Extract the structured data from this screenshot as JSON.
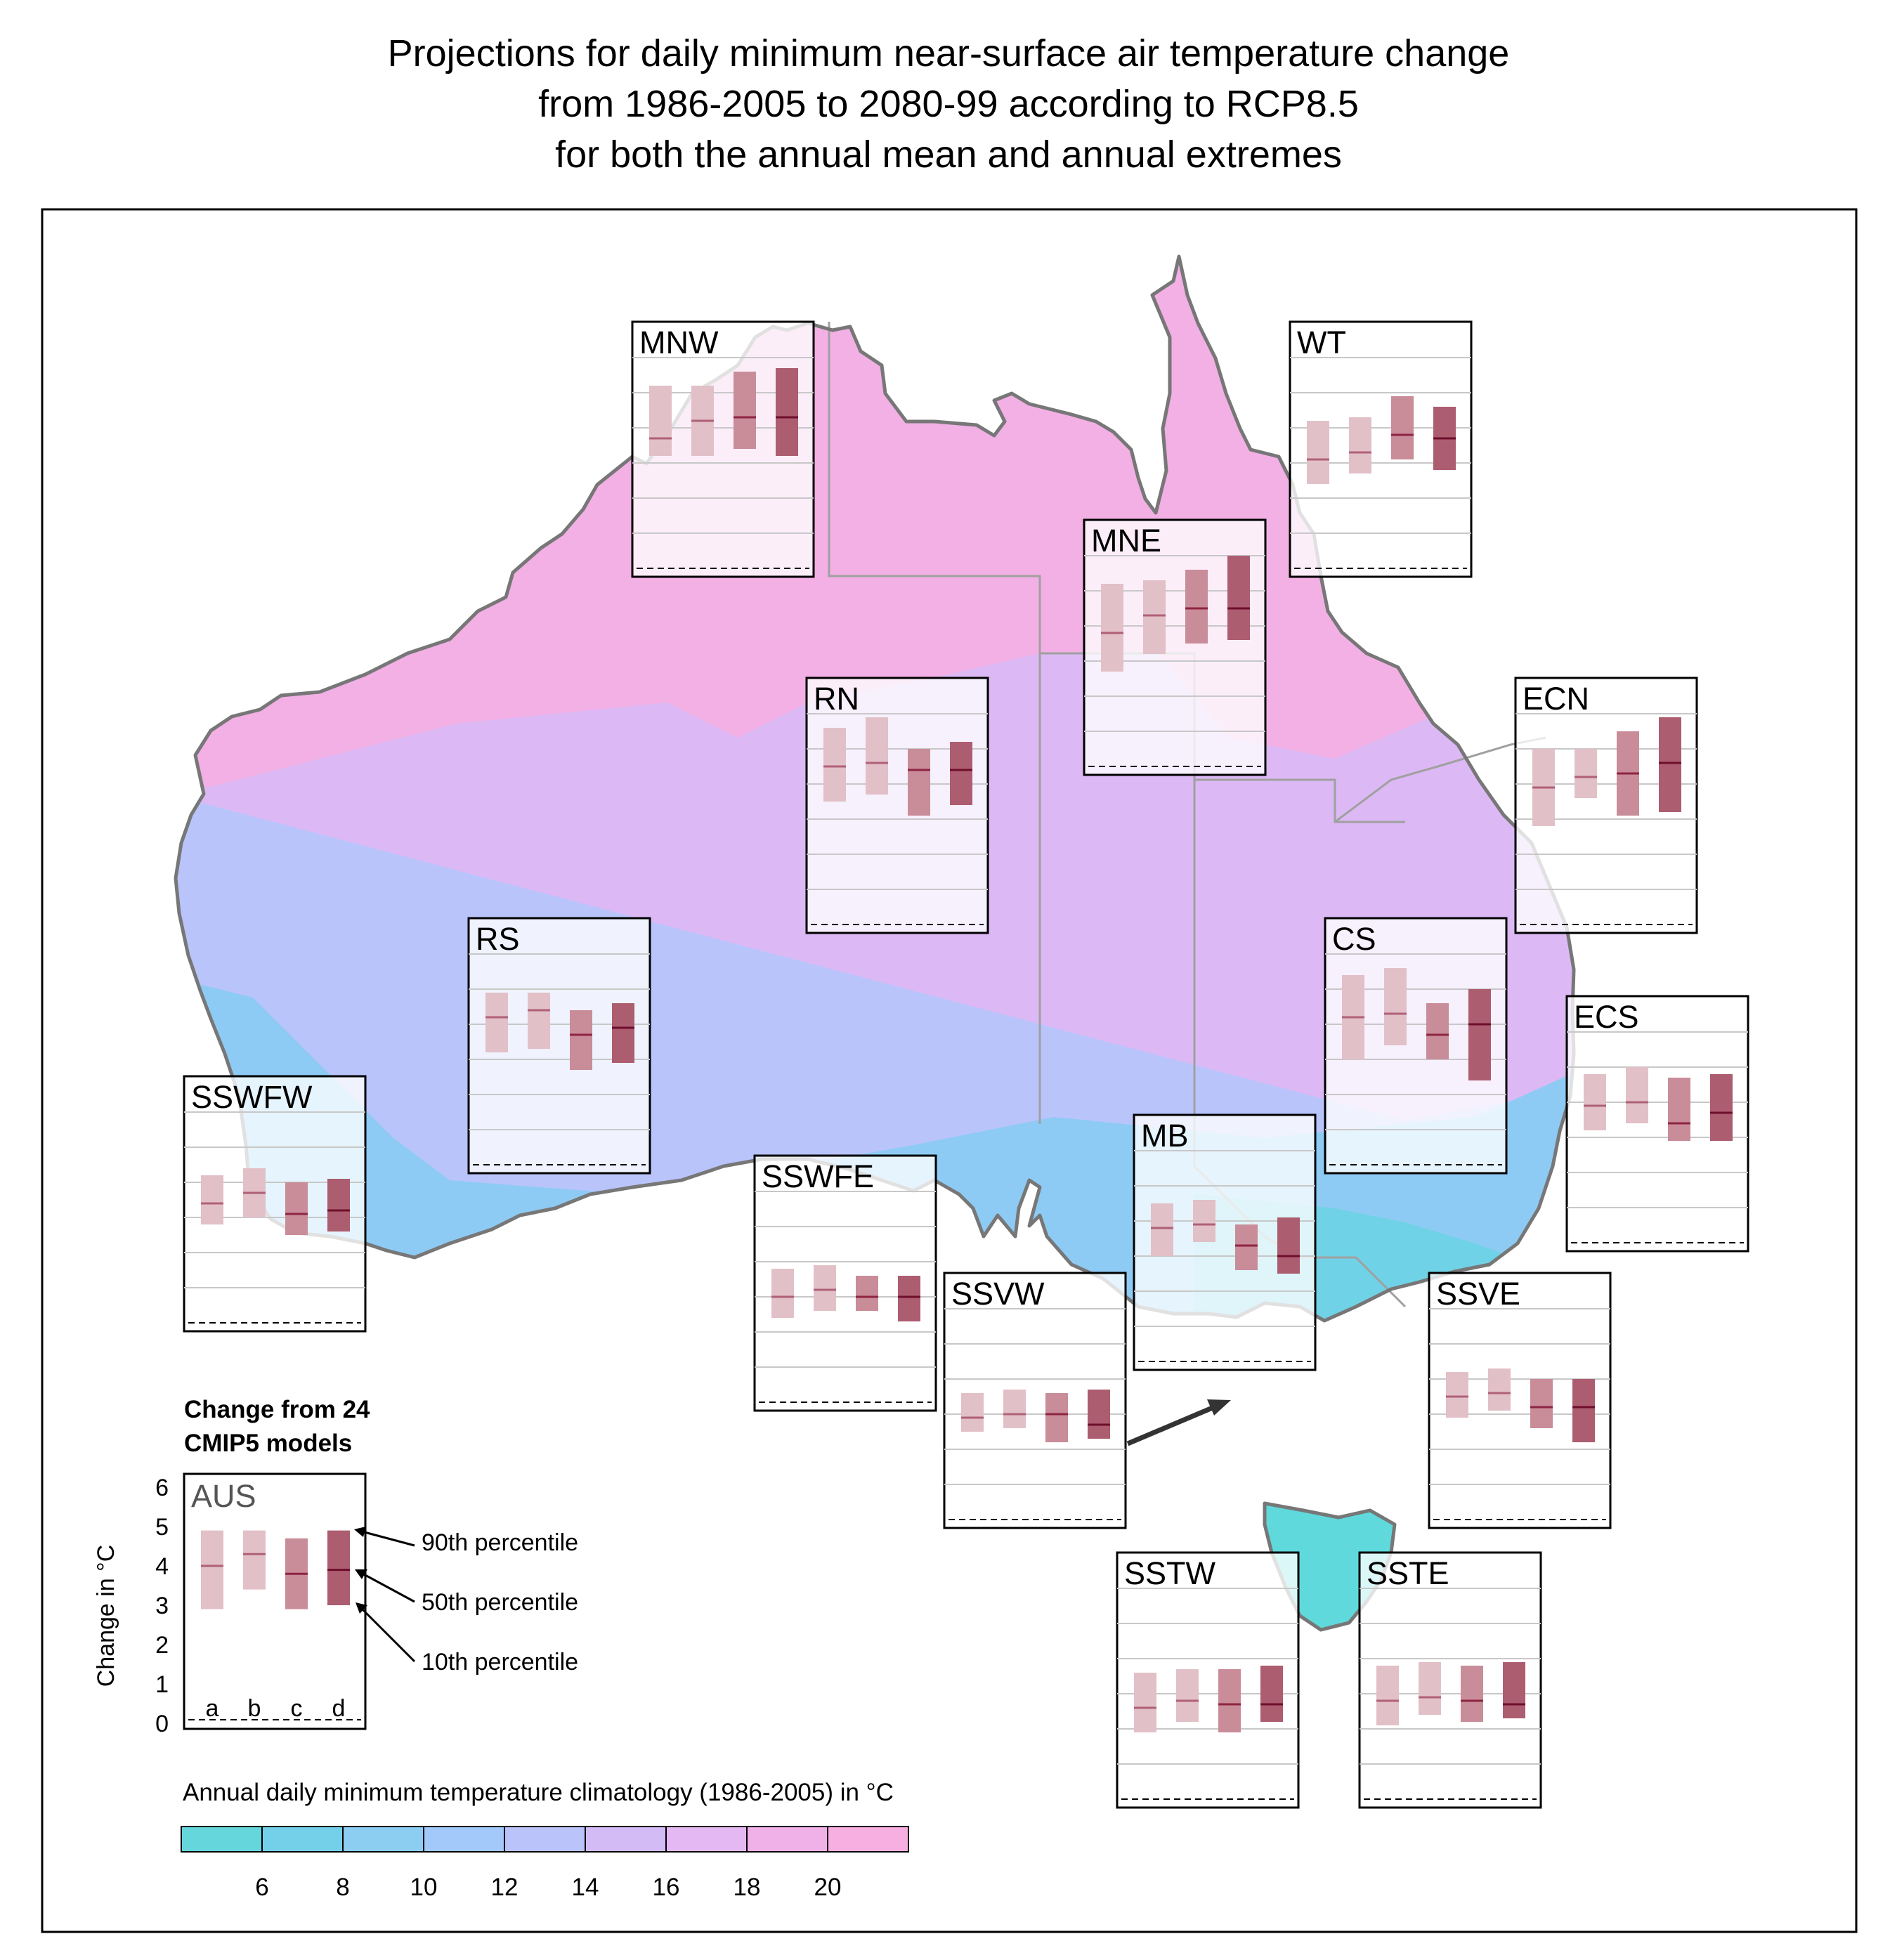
{
  "title": {
    "line1": "Projections for daily minimum near-surface air temperature change",
    "line2": "from 1986-2005 to 2080-99 according to RCP8.5",
    "line3": "for both the annual mean and annual extremes"
  },
  "legend": {
    "heading_line1": "Change from 24",
    "heading_line2": "CMIP5 models",
    "example_region": "AUS",
    "y_axis_label": "Change in  °C",
    "y_ticks": [
      "0",
      "1",
      "2",
      "3",
      "4",
      "5",
      "6"
    ],
    "bar_letters": [
      "a",
      "b",
      "c",
      "d"
    ],
    "p90_label": "90th percentile",
    "p50_label": "50th percentile",
    "p10_label": "10th percentile",
    "example_bars": [
      {
        "p10": 2.9,
        "p50": 4.0,
        "p90": 4.9
      },
      {
        "p10": 3.4,
        "p50": 4.3,
        "p90": 4.9
      },
      {
        "p10": 2.9,
        "p50": 3.8,
        "p90": 4.7
      },
      {
        "p10": 3.0,
        "p50": 3.9,
        "p90": 4.9
      }
    ]
  },
  "colorbar": {
    "label": "Annual daily minimum temperature climatology (1986-2005) in  °C",
    "tick_labels": [
      "6",
      "8",
      "10",
      "12",
      "14",
      "16",
      "18",
      "20"
    ],
    "colors": [
      "#64d6dc",
      "#74d0e8",
      "#8ccdf2",
      "#a3c9fa",
      "#bbc3fb",
      "#d3bcf6",
      "#e4b8f2",
      "#efb1e8",
      "#f7aee0"
    ]
  },
  "map_colors": {
    "north": "#f2b0e5",
    "central": "#dcb9f5",
    "southwest": "#b9c4fb",
    "south": "#8ecbf4",
    "southeast": "#70d2e6",
    "tasmania": "#5fd9dc",
    "border": "#7a7a7a"
  },
  "bar_colors": [
    "#e2c0c7",
    "#e2c0c7",
    "#c98c99",
    "#ad5d70"
  ],
  "median_colors": [
    "#b0607a",
    "#b0607a",
    "#8e2444",
    "#6e0e2c"
  ],
  "chart_data": {
    "type": "bar",
    "description_units": "Change in °C",
    "ylim": [
      0,
      6
    ],
    "categories": [
      "a",
      "b",
      "c",
      "d"
    ],
    "regions": [
      {
        "name": "MNW",
        "bars": [
          [
            3.2,
            3.7,
            5.2
          ],
          [
            3.2,
            4.2,
            5.2
          ],
          [
            3.4,
            4.3,
            5.6
          ],
          [
            3.2,
            4.3,
            5.7
          ]
        ]
      },
      {
        "name": "WT",
        "bars": [
          [
            2.4,
            3.1,
            4.2
          ],
          [
            2.7,
            3.3,
            4.3
          ],
          [
            3.1,
            3.8,
            4.9
          ],
          [
            2.8,
            3.7,
            4.6
          ]
        ]
      },
      {
        "name": "MNE",
        "bars": [
          [
            2.7,
            3.8,
            5.2
          ],
          [
            3.2,
            4.3,
            5.3
          ],
          [
            3.5,
            4.5,
            5.6
          ],
          [
            3.6,
            4.5,
            6.0
          ]
        ]
      },
      {
        "name": "RN",
        "bars": [
          [
            3.5,
            4.5,
            5.6
          ],
          [
            3.7,
            4.6,
            5.9
          ],
          [
            3.1,
            4.4,
            5.0
          ],
          [
            3.4,
            4.4,
            5.2
          ]
        ]
      },
      {
        "name": "ECN",
        "bars": [
          [
            2.8,
            3.9,
            5.0
          ],
          [
            3.6,
            4.2,
            5.0
          ],
          [
            3.1,
            4.3,
            5.5
          ],
          [
            3.2,
            4.6,
            5.9
          ]
        ]
      },
      {
        "name": "RS",
        "bars": [
          [
            3.2,
            4.2,
            4.9
          ],
          [
            3.3,
            4.4,
            4.9
          ],
          [
            2.7,
            3.7,
            4.4
          ],
          [
            2.9,
            3.9,
            4.6
          ]
        ]
      },
      {
        "name": "CS",
        "bars": [
          [
            3.0,
            4.2,
            5.4
          ],
          [
            3.4,
            4.3,
            5.6
          ],
          [
            3.0,
            3.7,
            4.6
          ],
          [
            2.4,
            4.0,
            5.0
          ]
        ]
      },
      {
        "name": "ECS",
        "bars": [
          [
            3.2,
            3.9,
            4.8
          ],
          [
            3.4,
            4.0,
            5.0
          ],
          [
            2.9,
            3.4,
            4.7
          ],
          [
            2.9,
            3.7,
            4.8
          ]
        ]
      },
      {
        "name": "SSWFW",
        "bars": [
          [
            2.8,
            3.4,
            4.2
          ],
          [
            3.0,
            3.7,
            4.4
          ],
          [
            2.5,
            3.1,
            4.0
          ],
          [
            2.6,
            3.2,
            4.1
          ]
        ]
      },
      {
        "name": "SSWFE",
        "bars": [
          [
            2.4,
            3.0,
            3.8
          ],
          [
            2.6,
            3.2,
            3.9
          ],
          [
            2.6,
            3.0,
            3.6
          ],
          [
            2.3,
            3.0,
            3.6
          ]
        ]
      },
      {
        "name": "MB",
        "bars": [
          [
            3.0,
            3.8,
            4.5
          ],
          [
            3.4,
            3.9,
            4.6
          ],
          [
            2.6,
            3.3,
            3.9
          ],
          [
            2.5,
            3.0,
            4.1
          ]
        ]
      },
      {
        "name": "SSVW",
        "bars": [
          [
            2.5,
            2.9,
            3.6
          ],
          [
            2.6,
            3.0,
            3.7
          ],
          [
            2.2,
            3.0,
            3.6
          ],
          [
            2.3,
            2.7,
            3.7
          ]
        ]
      },
      {
        "name": "SSVE",
        "bars": [
          [
            2.9,
            3.5,
            4.2
          ],
          [
            3.1,
            3.6,
            4.3
          ],
          [
            2.6,
            3.2,
            4.0
          ],
          [
            2.2,
            3.2,
            4.0
          ]
        ]
      },
      {
        "name": "SSTW",
        "bars": [
          [
            1.9,
            2.6,
            3.6
          ],
          [
            2.2,
            2.8,
            3.7
          ],
          [
            1.9,
            2.7,
            3.7
          ],
          [
            2.2,
            2.7,
            3.8
          ]
        ]
      },
      {
        "name": "SSTE",
        "bars": [
          [
            2.1,
            2.8,
            3.8
          ],
          [
            2.4,
            2.9,
            3.9
          ],
          [
            2.2,
            2.8,
            3.8
          ],
          [
            2.3,
            2.7,
            3.9
          ]
        ]
      }
    ]
  }
}
